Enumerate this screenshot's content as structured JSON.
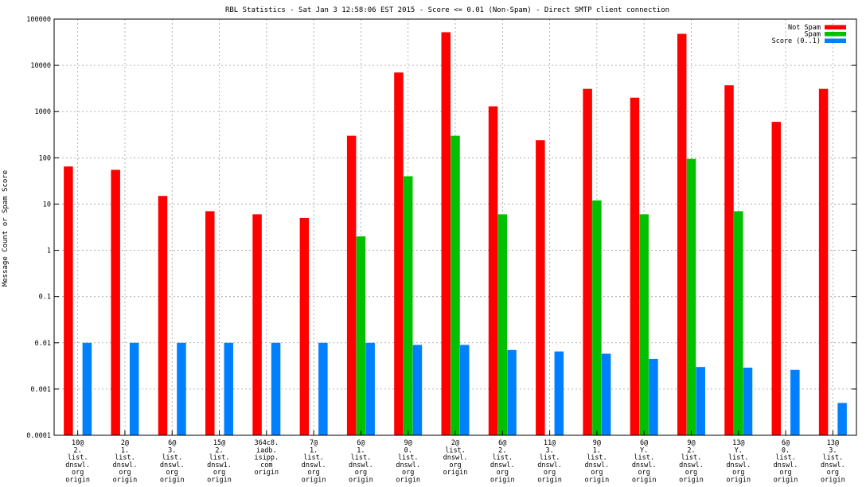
{
  "chart_data": {
    "type": "bar",
    "title": "RBL Statistics - Sat Jan  3 12:58:06 EST 2015 - Score <= 0.01 (Non-Spam) - Direct SMTP client connection",
    "xlabel": "",
    "ylabel": "Message Count or Spam Score",
    "yscale": "log",
    "ylim": [
      0.0001,
      100000
    ],
    "grid": true,
    "legend_position": "top-right",
    "y_ticks": [
      "0.0001",
      "0.001",
      "0.01",
      "0.1",
      "1",
      "10",
      "100",
      "1000",
      "10000",
      "100000"
    ],
    "categories": [
      [
        "10@",
        "2.",
        "list.",
        "dnswl.",
        "org",
        "origin"
      ],
      [
        "2@",
        "1.",
        "list.",
        "dnswl.",
        "org",
        "origin"
      ],
      [
        "6@",
        "3.",
        "list.",
        "dnswl.",
        "org",
        "origin"
      ],
      [
        "15@",
        "2.",
        "list.",
        "dnsw1.",
        "org",
        "origin"
      ],
      [
        "364c8.",
        "iadb.",
        "isipp.",
        "com",
        "origin"
      ],
      [
        "7@",
        "1.",
        "list.",
        "dnswl.",
        "org",
        "origin"
      ],
      [
        "6@",
        "1.",
        "list.",
        "dnswl.",
        "org",
        "origin"
      ],
      [
        "9@",
        "0.",
        "list.",
        "dnswl.",
        "org",
        "origin"
      ],
      [
        "2@",
        "list.",
        "dnswl.",
        "org",
        "origin"
      ],
      [
        "6@",
        "2.",
        "list.",
        "dnswl.",
        "org",
        "origin"
      ],
      [
        "11@",
        "3.",
        "list.",
        "dnswl.",
        "org",
        "origin"
      ],
      [
        "9@",
        "1.",
        "list.",
        "dnswl.",
        "org",
        "origin"
      ],
      [
        "6@",
        "Y.",
        "list.",
        "dnswl.",
        "org",
        "origin"
      ],
      [
        "9@",
        "2.",
        "list.",
        "dnswl.",
        "org",
        "origin"
      ],
      [
        "13@",
        "Y.",
        "list.",
        "dnswl.",
        "org",
        "origin"
      ],
      [
        "6@",
        "0.",
        "list.",
        "dnswl.",
        "org",
        "origin"
      ],
      [
        "13@",
        "3.",
        "list.",
        "dnswl.",
        "org",
        "origin"
      ]
    ],
    "series": [
      {
        "name": "Not Spam",
        "color": "#ff0000",
        "values": [
          65,
          55,
          15,
          7,
          6,
          5,
          300,
          7000,
          52000,
          1300,
          240,
          3100,
          2000,
          48000,
          3700,
          600,
          3100
        ]
      },
      {
        "name": "Spam",
        "color": "#00c000",
        "values": [
          null,
          null,
          null,
          null,
          null,
          null,
          2,
          40,
          300,
          6,
          null,
          12,
          6,
          95,
          7,
          null,
          null
        ]
      },
      {
        "name": "Score (0..1)",
        "color": "#0080ff",
        "values": [
          0.01,
          0.01,
          0.01,
          0.01,
          0.01,
          0.01,
          0.01,
          0.009,
          0.009,
          0.007,
          0.0065,
          0.0058,
          0.0045,
          0.003,
          0.0029,
          0.0026,
          0.0005
        ]
      }
    ]
  }
}
